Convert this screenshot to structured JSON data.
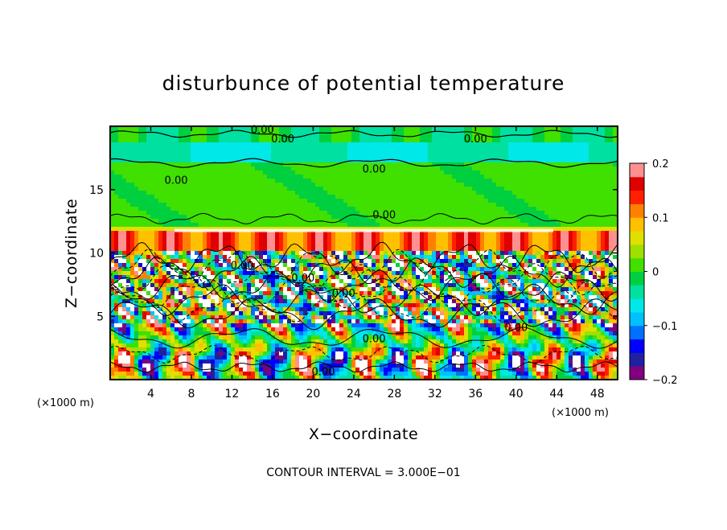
{
  "chart_data": {
    "type": "heatmap",
    "title": "disturbunce of potential temperature",
    "xlabel": "X−coordinate",
    "ylabel": "Z−coordinate",
    "x_unit": "(×1000 m)",
    "y_unit": "(×1000 m)",
    "xlim": [
      0,
      50
    ],
    "ylim": [
      0,
      20
    ],
    "x_ticks": [
      4,
      8,
      12,
      16,
      20,
      24,
      28,
      32,
      36,
      40,
      44,
      48
    ],
    "y_ticks": [
      5,
      10,
      15
    ],
    "colorbar": {
      "min": -0.2,
      "max": 0.2,
      "ticks": [
        0.2,
        0.1,
        0,
        -0.1,
        -0.2
      ],
      "tick_labels": [
        "0.2",
        "0.1",
        "0",
        "−0.1",
        "−0.2"
      ],
      "colors": [
        "#800080",
        "#2020a0",
        "#0000ff",
        "#0070ff",
        "#00c0ff",
        "#00e8e8",
        "#00e0a0",
        "#00d040",
        "#40e000",
        "#a0e000",
        "#e0e000",
        "#ffc000",
        "#ff8000",
        "#ff2000",
        "#e00000",
        "#ff9090"
      ]
    },
    "contour_labels": [
      "0.00",
      "0.00",
      "0.00",
      "0.00",
      "0.00",
      "0.00",
      "0.00",
      "0.00",
      "0.00",
      "0.00",
      "0.00",
      "0.00"
    ],
    "contour_interval_text": "CONTOUR INTERVAL = 3.000E−01"
  }
}
